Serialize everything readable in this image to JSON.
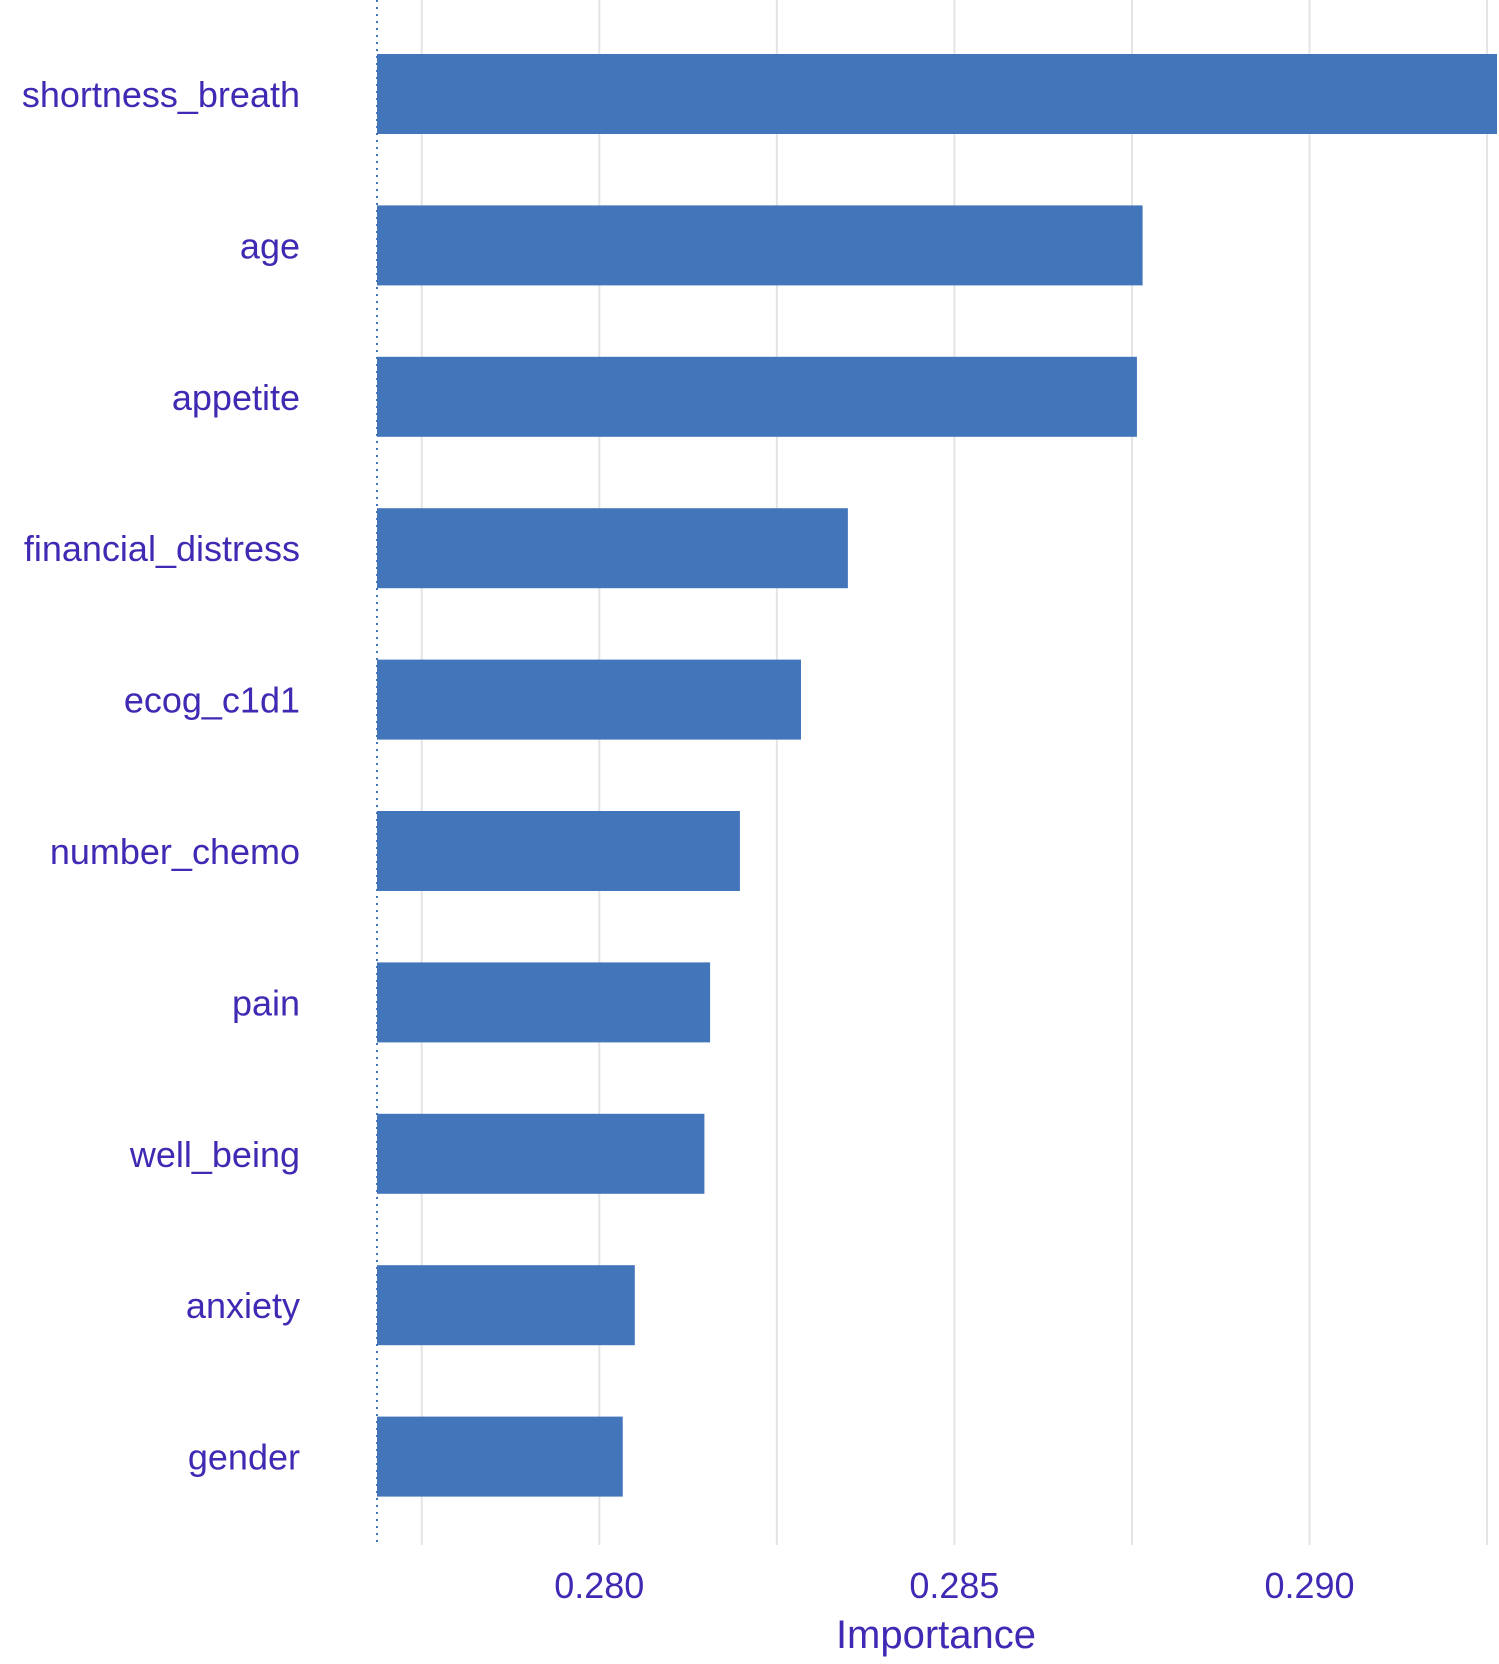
{
  "chart_data": {
    "type": "bar",
    "orientation": "horizontal",
    "title": "",
    "xlabel": "Importance",
    "ylabel": "",
    "categories": [
      "shortness_breath",
      "age",
      "appetite",
      "financial_distress",
      "ecog_c1d1",
      "number_chemo",
      "pain",
      "well_being",
      "anxiety",
      "gender"
    ],
    "values": [
      0.29264,
      0.28765,
      0.28757,
      0.2835,
      0.28284,
      0.28198,
      0.28156,
      0.28148,
      0.2805,
      0.28033
    ],
    "xlim": [
      0.27687,
      0.29264
    ],
    "xticks": [
      0.28,
      0.285,
      0.29
    ],
    "xtick_labels": [
      "0.280",
      "0.285",
      "0.290"
    ],
    "grid": true,
    "legend": "none",
    "colors": {
      "bar": "#4375BA",
      "text": "#3F2AB3",
      "grid": "#E4E4E4",
      "baseline": "#4375BA"
    }
  }
}
